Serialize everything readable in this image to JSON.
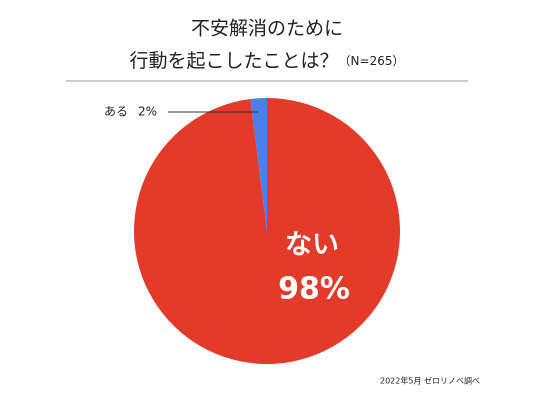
{
  "chart_data": {
    "type": "pie",
    "title": [
      "不安解消のために",
      "行動を起こしたことは？"
    ],
    "subtitle": "（N=265）",
    "categories": [
      "ない",
      "ある"
    ],
    "values": [
      98,
      2
    ],
    "value_labels": [
      "98%",
      "2%"
    ],
    "colors": [
      "#e43a2a",
      "#4c80e8"
    ],
    "source": "2022年5月 ゼロリノベ調べ"
  }
}
